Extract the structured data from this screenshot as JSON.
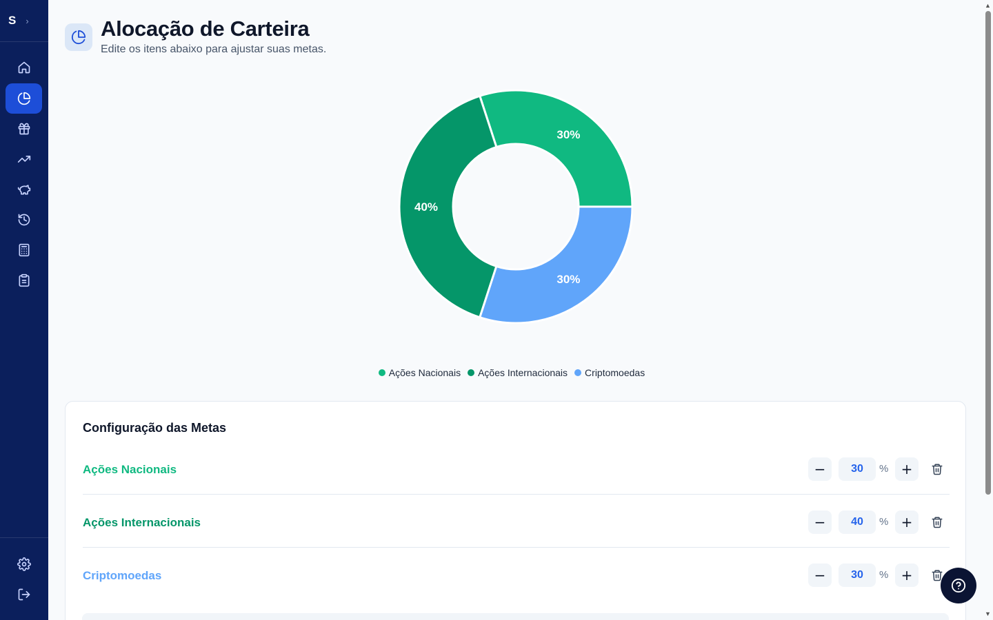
{
  "sidebar": {
    "logo": "S",
    "expand_icon": "chevron-right-icon",
    "items": [
      {
        "icon": "home-icon",
        "active": false
      },
      {
        "icon": "pie-chart-icon",
        "active": true
      },
      {
        "icon": "gift-icon",
        "active": false
      },
      {
        "icon": "trending-up-icon",
        "active": false
      },
      {
        "icon": "piggy-bank-icon",
        "active": false
      },
      {
        "icon": "history-icon",
        "active": false
      },
      {
        "icon": "calculator-icon",
        "active": false
      },
      {
        "icon": "clipboard-icon",
        "active": false
      }
    ],
    "bottom_items": [
      {
        "icon": "settings-icon"
      },
      {
        "icon": "logout-icon"
      }
    ]
  },
  "header": {
    "title": "Alocação de Carteira",
    "subtitle": "Edite os itens abaixo para ajustar suas metas."
  },
  "chart_data": {
    "type": "pie",
    "donut": true,
    "slices": [
      {
        "label": "Ações Nacionais",
        "value": 30,
        "display": "30%",
        "color": "#10b981"
      },
      {
        "label": "Ações Internacionais",
        "value": 40,
        "display": "40%",
        "color": "#059669"
      },
      {
        "label": "Criptomoedas",
        "value": 30,
        "display": "30%",
        "color": "#60a5fa"
      }
    ],
    "legend_position": "bottom"
  },
  "goals": {
    "title": "Configuração das Metas",
    "unit": "%",
    "items": [
      {
        "label": "Ações Nacionais",
        "value": "30",
        "color": "#10b981"
      },
      {
        "label": "Ações Internacionais",
        "value": "40",
        "color": "#059669"
      },
      {
        "label": "Criptomoedas",
        "value": "30",
        "color": "#60a5fa"
      }
    ],
    "decrement_symbol": "−",
    "increment_symbol": "+"
  },
  "help": {
    "icon": "help-circle-icon"
  },
  "colors": {
    "sidebar": "#0b1f5c",
    "accent": "#1d4ed8"
  }
}
